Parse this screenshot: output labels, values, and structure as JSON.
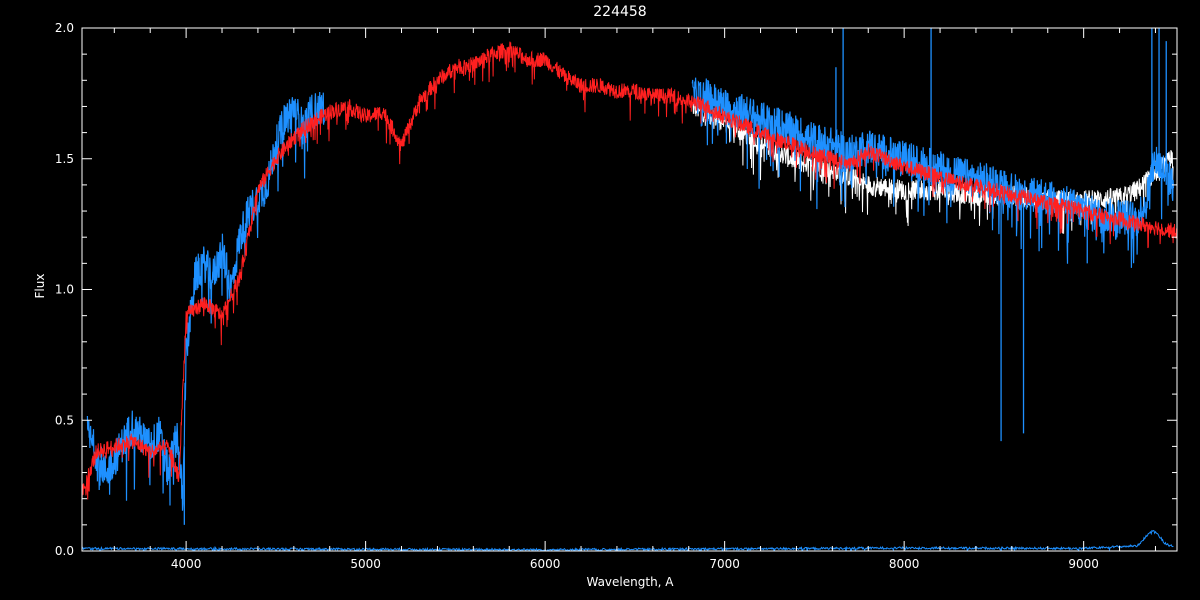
{
  "chart_data": {
    "type": "line",
    "title": "224458",
    "xlabel": "Wavelength, A",
    "ylabel": "Flux",
    "xlim": [
      3420,
      9520
    ],
    "ylim": [
      0.0,
      2.0
    ],
    "x_ticks": [
      4000,
      5000,
      6000,
      7000,
      8000,
      9000
    ],
    "x_tick_labels": [
      "4000",
      "5000",
      "6000",
      "7000",
      "8000",
      "9000"
    ],
    "y_ticks": [
      0.0,
      0.5,
      1.0,
      1.5,
      2.0
    ],
    "y_tick_labels": [
      "0.0",
      "0.5",
      "1.0",
      "1.5",
      "2.0"
    ],
    "x_minor_step": 200,
    "y_minor_step": 0.1,
    "background": "#000000",
    "axis_color": "#ffffff",
    "series": [
      {
        "color": "#ffffff",
        "noise": 0.04,
        "points": [
          [
            6820,
            1.7
          ],
          [
            7000,
            1.64
          ],
          [
            7200,
            1.56
          ],
          [
            7400,
            1.49
          ],
          [
            7600,
            1.46
          ],
          [
            7800,
            1.4
          ],
          [
            8000,
            1.38
          ],
          [
            8200,
            1.38
          ],
          [
            8400,
            1.36
          ],
          [
            8600,
            1.36
          ],
          [
            8800,
            1.34
          ],
          [
            9000,
            1.34
          ],
          [
            9200,
            1.35
          ],
          [
            9300,
            1.38
          ],
          [
            9400,
            1.45
          ],
          [
            9500,
            1.5
          ]
        ]
      },
      {
        "color": "#1e90ff",
        "noise": 0.07,
        "points": [
          [
            3450,
            0.45
          ],
          [
            3550,
            0.3
          ],
          [
            3600,
            0.35
          ],
          [
            3700,
            0.48
          ],
          [
            3800,
            0.4
          ],
          [
            3850,
            0.45
          ],
          [
            3900,
            0.3
          ],
          [
            3950,
            0.45
          ],
          [
            3980,
            0.2
          ],
          [
            4000,
            0.75
          ],
          [
            4050,
            1.05
          ],
          [
            4100,
            1.1
          ],
          [
            4150,
            1.05
          ],
          [
            4200,
            1.15
          ],
          [
            4250,
            1.0
          ],
          [
            4300,
            1.2
          ],
          [
            4350,
            1.3
          ],
          [
            4400,
            1.35
          ],
          [
            4450,
            1.4
          ],
          [
            4500,
            1.55
          ],
          [
            4550,
            1.65
          ],
          [
            4600,
            1.7
          ],
          [
            4650,
            1.62
          ],
          [
            4700,
            1.68
          ],
          [
            4770,
            1.7
          ]
        ],
        "points2": [
          [
            6820,
            1.74
          ],
          [
            6900,
            1.74
          ],
          [
            7000,
            1.7
          ],
          [
            7100,
            1.68
          ],
          [
            7200,
            1.65
          ],
          [
            7300,
            1.63
          ],
          [
            7400,
            1.6
          ],
          [
            7500,
            1.57
          ],
          [
            7600,
            1.55
          ],
          [
            7700,
            1.52
          ],
          [
            7800,
            1.55
          ],
          [
            7900,
            1.52
          ],
          [
            8000,
            1.5
          ],
          [
            8100,
            1.48
          ],
          [
            8200,
            1.46
          ],
          [
            8300,
            1.44
          ],
          [
            8400,
            1.42
          ],
          [
            8500,
            1.41
          ],
          [
            8600,
            1.38
          ],
          [
            8700,
            1.36
          ],
          [
            8800,
            1.35
          ],
          [
            8900,
            1.33
          ],
          [
            9000,
            1.3
          ],
          [
            9100,
            1.28
          ],
          [
            9200,
            1.28
          ],
          [
            9300,
            1.27
          ],
          [
            9350,
            1.35
          ],
          [
            9400,
            1.5
          ],
          [
            9500,
            1.4
          ]
        ]
      },
      {
        "color": "#ff2020",
        "noise": 0.03,
        "points": [
          [
            3420,
            0.22
          ],
          [
            3500,
            0.38
          ],
          [
            3600,
            0.4
          ],
          [
            3700,
            0.42
          ],
          [
            3800,
            0.38
          ],
          [
            3900,
            0.4
          ],
          [
            3960,
            0.28
          ],
          [
            4000,
            0.9
          ],
          [
            4100,
            0.95
          ],
          [
            4200,
            0.9
          ],
          [
            4300,
            1.05
          ],
          [
            4400,
            1.38
          ],
          [
            4500,
            1.5
          ],
          [
            4600,
            1.58
          ],
          [
            4700,
            1.64
          ],
          [
            4800,
            1.68
          ],
          [
            4900,
            1.7
          ],
          [
            5000,
            1.66
          ],
          [
            5100,
            1.68
          ],
          [
            5200,
            1.55
          ],
          [
            5300,
            1.72
          ],
          [
            5400,
            1.8
          ],
          [
            5500,
            1.85
          ],
          [
            5600,
            1.86
          ],
          [
            5700,
            1.9
          ],
          [
            5800,
            1.92
          ],
          [
            5900,
            1.88
          ],
          [
            6000,
            1.88
          ],
          [
            6100,
            1.82
          ],
          [
            6200,
            1.78
          ],
          [
            6300,
            1.78
          ],
          [
            6400,
            1.76
          ],
          [
            6500,
            1.76
          ],
          [
            6600,
            1.74
          ],
          [
            6700,
            1.74
          ],
          [
            6800,
            1.72
          ],
          [
            6900,
            1.7
          ],
          [
            7000,
            1.66
          ],
          [
            7100,
            1.63
          ],
          [
            7200,
            1.6
          ],
          [
            7300,
            1.57
          ],
          [
            7400,
            1.55
          ],
          [
            7500,
            1.52
          ],
          [
            7600,
            1.5
          ],
          [
            7700,
            1.48
          ],
          [
            7800,
            1.53
          ],
          [
            7900,
            1.5
          ],
          [
            8000,
            1.47
          ],
          [
            8100,
            1.45
          ],
          [
            8200,
            1.43
          ],
          [
            8300,
            1.41
          ],
          [
            8400,
            1.4
          ],
          [
            8500,
            1.38
          ],
          [
            8600,
            1.36
          ],
          [
            8700,
            1.35
          ],
          [
            8800,
            1.33
          ],
          [
            8900,
            1.32
          ],
          [
            9000,
            1.3
          ],
          [
            9100,
            1.28
          ],
          [
            9200,
            1.27
          ],
          [
            9300,
            1.25
          ],
          [
            9400,
            1.24
          ],
          [
            9520,
            1.22
          ]
        ]
      },
      {
        "color": "#1e90ff",
        "noise": 0.004,
        "points": [
          [
            3420,
            0.01
          ],
          [
            6000,
            0.005
          ],
          [
            7600,
            0.01
          ],
          [
            8000,
            0.012
          ],
          [
            9000,
            0.01
          ],
          [
            9300,
            0.02
          ],
          [
            9380,
            0.08
          ],
          [
            9420,
            0.06
          ],
          [
            9450,
            0.03
          ],
          [
            9500,
            0.02
          ]
        ]
      }
    ],
    "spikes": [
      {
        "x": 7660,
        "y1": 1.45,
        "y2": 2.0,
        "color": "#1e90ff"
      },
      {
        "x": 8150,
        "y1": 1.4,
        "y2": 2.0,
        "color": "#1e90ff"
      },
      {
        "x": 8540,
        "y1": 1.35,
        "y2": 0.42,
        "color": "#1e90ff"
      },
      {
        "x": 8665,
        "y1": 1.33,
        "y2": 0.45,
        "color": "#1e90ff"
      },
      {
        "x": 9020,
        "y1": 1.3,
        "y2": 1.1,
        "color": "#1e90ff"
      },
      {
        "x": 7620,
        "y1": 1.52,
        "y2": 1.85,
        "color": "#1e90ff"
      },
      {
        "x": 9380,
        "y1": 1.45,
        "y2": 2.0,
        "color": "#1e90ff"
      },
      {
        "x": 9420,
        "y1": 1.5,
        "y2": 2.0,
        "color": "#1e90ff"
      },
      {
        "x": 9460,
        "y1": 1.4,
        "y2": 1.95,
        "color": "#1e90ff"
      },
      {
        "x": 3990,
        "y1": 0.4,
        "y2": 0.1,
        "color": "#1e90ff"
      }
    ]
  }
}
